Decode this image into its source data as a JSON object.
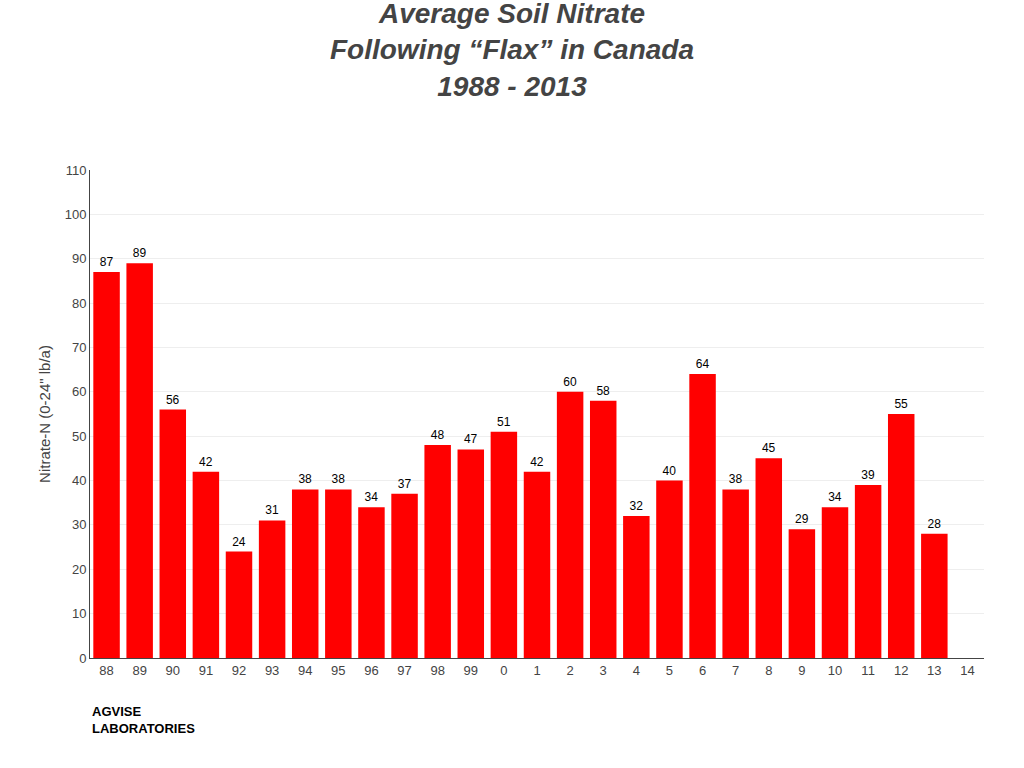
{
  "chart_data": {
    "type": "bar",
    "title": "Average Soil Nitrate\nFollowing “Flax” in Canada\n1988 - 2013",
    "y_label": "Nitrate-N (0-24\" lb/a)",
    "categories": [
      "88",
      "89",
      "90",
      "91",
      "92",
      "93",
      "94",
      "95",
      "96",
      "97",
      "98",
      "99",
      "0",
      "1",
      "2",
      "3",
      "4",
      "5",
      "6",
      "7",
      "8",
      "9",
      "10",
      "11",
      "12",
      "13",
      "14"
    ],
    "values": [
      87,
      89,
      56,
      42,
      24,
      31,
      38,
      38,
      34,
      37,
      48,
      47,
      51,
      42,
      60,
      58,
      32,
      40,
      64,
      38,
      45,
      29,
      34,
      39,
      55,
      28,
      0
    ],
    "value_labels": [
      "87",
      "89",
      "56",
      "42",
      "24",
      "31",
      "38",
      "38",
      "34",
      "37",
      "48",
      "47",
      "51",
      "42",
      "60",
      "58",
      "32",
      "40",
      "64",
      "38",
      "45",
      "29",
      "34",
      "39",
      "55",
      "28",
      null
    ],
    "data_labels": true,
    "color": "#FF0000",
    "ylim": [
      0,
      110
    ],
    "yticks": [
      0,
      10,
      20,
      30,
      40,
      50,
      60,
      70,
      80,
      90,
      100,
      110
    ],
    "grid": true,
    "annotations": [
      "AGVISE\nLABORATORIES"
    ]
  }
}
